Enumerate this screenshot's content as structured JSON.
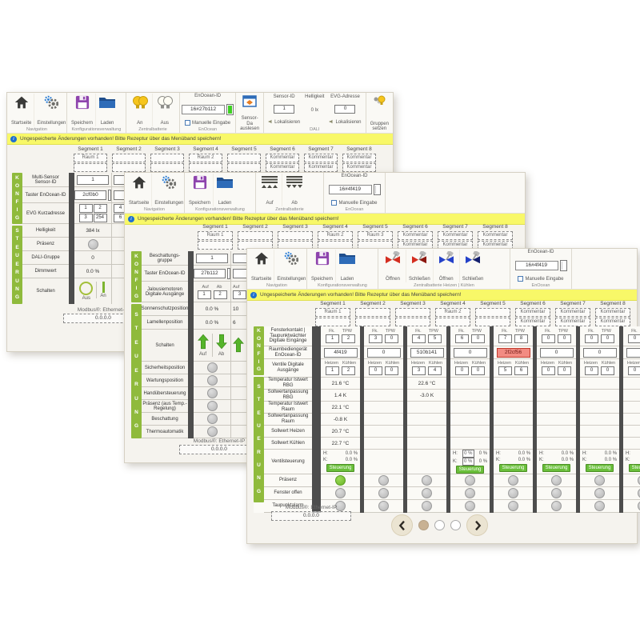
{
  "colors": {
    "accent_green": "#8fba3c",
    "status_green": "#6cb52a",
    "status_gray": "#c4c4c4",
    "warning_bg": "#f8f868",
    "alarm_red": "#f28b82",
    "badge_green": "#6abf3a",
    "battery_green": "#3ecf22"
  },
  "shared": {
    "warning_text": "Ungespeicherte Änderungen vorhanden! Bitte Rezeptur über das Menüband speichern!",
    "modbus_label": "Modbus®: Ethernet-IP",
    "modbus_value": "0.0.0.0",
    "konfig": "KONFIG",
    "steuerung": "STEUERUNG",
    "manual_label": "Manuelle Eingabe",
    "enocean_label": "EnOcean-ID"
  },
  "win1": {
    "toolbar": {
      "startseite": "Startseite",
      "einstellungen": "Einstellungen",
      "speichern": "Speichern",
      "laden": "Laden",
      "an": "An",
      "aus": "Aus",
      "enocean_id": "16#27b112",
      "sensor_read": "Sensor-Da auslesen",
      "caps": {
        "navigation": "Navigation",
        "konfig": "Konfigurationsverwaltung",
        "zentral": "Zentralbatterie",
        "enocean": "EnOcean",
        "dali": "DALI"
      },
      "dali": {
        "sensor_id_label": "Sensor-ID",
        "sensor_id": "1",
        "helligkeit_label": "Helligkeit",
        "helligkeit": "0 lx",
        "lokalisieren": "Lokalisieren",
        "evg_label": "EVG-Adresse",
        "evg": "0",
        "gruppen": "Gruppen setzen"
      }
    },
    "segments": [
      {
        "label": "Segment 1",
        "r1": "Raum 1",
        "r2": ""
      },
      {
        "label": "Segment 2",
        "r1": "",
        "r2": ""
      },
      {
        "label": "Segment 3",
        "r1": "",
        "r2": ""
      },
      {
        "label": "Segment 4",
        "r1": "Raum 2",
        "r2": ""
      },
      {
        "label": "Segment 5",
        "r1": "",
        "r2": ""
      },
      {
        "label": "Segment 6",
        "r1": "Kommentar",
        "r2": "Kommentar"
      },
      {
        "label": "Segment 7",
        "r1": "Kommentar",
        "r2": "Kommentar"
      },
      {
        "label": "Segment 8",
        "r1": "Kommentar",
        "r2": "Kommentar"
      }
    ],
    "panel": {
      "sensor_label": "Multi-Sensor Sensor-ID",
      "sensor_value": "1",
      "taster_label": "Taster EnOcean-ID",
      "taster_value": "2cf0b0",
      "evg_label": "EVG Kurzadresse",
      "evg": [
        "1",
        "2",
        "3",
        "254"
      ],
      "helligkeit_label": "Helligkeit",
      "helligkeit_value": "384 lx",
      "praesenz_label": "Präsenz",
      "dali_label": "DALI-Gruppe",
      "dali_value": "0",
      "dimm_label": "Dimmwert",
      "dimm_value": "0.0 %",
      "schalten_label": "Schalten",
      "aus": "Aus",
      "an": "An",
      "sliver": {
        "evg1": "4",
        "evg2": "6"
      }
    }
  },
  "win2": {
    "toolbar": {
      "startseite": "Startseite",
      "einstellungen": "Einstellungen",
      "speichern": "Speichern",
      "laden": "Laden",
      "auf": "Auf",
      "ab": "Ab",
      "enocean_id": "16#4f419",
      "caps": {
        "navigation": "Navigation",
        "konfig": "Konfigurationsverwaltung",
        "zentral": "Zentralbatterie",
        "enocean": "EnOcean"
      }
    },
    "segments": [
      {
        "label": "Segment 1",
        "r1": "Raum 1",
        "r2": ""
      },
      {
        "label": "Segment 2",
        "r1": "",
        "r2": ""
      },
      {
        "label": "Segment 3",
        "r1": "",
        "r2": ""
      },
      {
        "label": "Segment 4",
        "r1": "Raum 2",
        "r2": ""
      },
      {
        "label": "Segment 5",
        "r1": "Raum 3",
        "r2": ""
      },
      {
        "label": "Segment 6",
        "r1": "Kommentar",
        "r2": "Kommentar"
      },
      {
        "label": "Segment 7",
        "r1": "Kommentar",
        "r2": "Kommentar"
      },
      {
        "label": "Segment 8",
        "r1": "Kommentar",
        "r2": "Kommentar"
      }
    ],
    "panel": {
      "gruppe_label": "Beschattungs- gruppe",
      "gruppe_value": "1",
      "taster_label": "Taster EnOcean-ID",
      "taster_value": "27b112",
      "jal_label": "Jalousiemotoren Digitale Ausgänge",
      "auf": "Auf",
      "ab": "Ab",
      "jal1": "1",
      "jal2": "2",
      "sonnen_label": "Sonnenschutzposition",
      "sonnen_value": "0.0 %",
      "lam_label": "Lamellenposition",
      "lam_value": "0.0 %",
      "schalten_label": "Schalten",
      "circles": [
        "Sicherheitsposition",
        "Wartungsposition",
        "Handübersteuerung",
        "Präsenz (aus Temp.-Regelung)",
        "Beschattung",
        "Thermoautomatik"
      ],
      "sliver": {
        "jal": "3",
        "sonnen": "10",
        "lam": "6"
      }
    }
  },
  "win3": {
    "toolbar": {
      "startseite": "Startseite",
      "einstellungen": "Einstellungen",
      "speichern": "Speichern",
      "laden": "Laden",
      "oeffnen": "Öffnen",
      "schliessen": "Schließen",
      "enocean_id": "16#4f419",
      "caps": {
        "navigation": "Navigation",
        "konfig": "Konfigurationsverwaltung",
        "zentral": "Zentralbatterie Heizen | Kühlen",
        "enocean": "EnOcean"
      }
    },
    "segments": [
      {
        "label": "Segment 1",
        "r1": "Raum 1",
        "r2": ""
      },
      {
        "label": "Segment 2",
        "r1": "",
        "r2": ""
      },
      {
        "label": "Segment 3",
        "r1": "",
        "r2": ""
      },
      {
        "label": "Segment 4",
        "r1": "Raum 2",
        "r2": ""
      },
      {
        "label": "Segment 5",
        "r1": "",
        "r2": ""
      },
      {
        "label": "Segment 6",
        "r1": "Kommentar",
        "r2": "Kommentar"
      },
      {
        "label": "Segment 7",
        "r1": "Kommentar",
        "r2": "Kommentar"
      },
      {
        "label": "Segment 8",
        "r1": "Kommentar",
        "r2": "Kommentar"
      }
    ],
    "table": {
      "headers": {
        "fk": "Fk.",
        "tpw": "TPW",
        "heizen": "Heizen",
        "kuehlen": "Kühlen",
        "h": "H:",
        "k": "K:",
        "badge": "Steuerung"
      },
      "label_a": "Fensterkontakt | Taupunktwächter Digitale Eingänge",
      "label_b": "Raumbediengerät EnOcean-ID",
      "label_c": "Ventile Digitale Ausgänge",
      "labels_v": [
        "Temperatur Istwert RBG",
        "Sollwertanpassung RBG",
        "Temperatur Istwert Raum",
        "Sollwertanpassung Raum",
        "Sollwert Heizen",
        "Sollwert Kühlen"
      ],
      "label_j": "Ventilsteuerung",
      "labels_s": [
        "Präsenz",
        "Fenster offen",
        "Taupunktalarm"
      ],
      "columns": [
        {
          "fk": "1",
          "tpw": "2",
          "id": "4f419",
          "id_alarm": false,
          "heizen": "1",
          "kuehlen": "2",
          "t_rbg": "21.6 °C",
          "sw_rbg": "1.4 K",
          "t_raum": "22.1 °C",
          "sw_raum": "-0.8 K",
          "sw_heizen": "20.7 °C",
          "sw_kuehlen": "22.7 °C",
          "h": "0.0 %",
          "k": "0.0 %",
          "hk_boxed": false,
          "h_suffix": "",
          "k_suffix": "",
          "badge": true,
          "presence_on": true
        },
        {
          "fk": "3",
          "tpw": "0",
          "id": "0",
          "id_alarm": false,
          "heizen": "0",
          "kuehlen": "0",
          "t_rbg": "",
          "sw_rbg": "",
          "t_raum": "",
          "sw_raum": "",
          "sw_heizen": "",
          "sw_kuehlen": "",
          "h": "",
          "k": "",
          "hk_boxed": false,
          "h_suffix": "",
          "k_suffix": "",
          "badge": false,
          "presence_on": false
        },
        {
          "fk": "4",
          "tpw": "5",
          "id": "510b141",
          "id_alarm": false,
          "heizen": "3",
          "kuehlen": "4",
          "t_rbg": "22.6 °C",
          "sw_rbg": "-3.0 K",
          "t_raum": "",
          "sw_raum": "",
          "sw_heizen": "",
          "sw_kuehlen": "",
          "h": "",
          "k": "",
          "hk_boxed": false,
          "h_suffix": "",
          "k_suffix": "",
          "badge": false,
          "presence_on": false
        },
        {
          "fk": "6",
          "tpw": "0",
          "id": "0",
          "id_alarm": false,
          "heizen": "0",
          "kuehlen": "0",
          "t_rbg": "",
          "sw_rbg": "",
          "t_raum": "",
          "sw_raum": "",
          "sw_heizen": "",
          "sw_kuehlen": "",
          "h": "0 %",
          "k": "0 %",
          "hk_boxed": true,
          "h_suffix": "0 %",
          "k_suffix": "0 %",
          "badge": true,
          "presence_on": false
        },
        {
          "fk": "7",
          "tpw": "8",
          "id": "2f2cf56",
          "id_alarm": true,
          "heizen": "5",
          "kuehlen": "6",
          "t_rbg": "",
          "sw_rbg": "",
          "t_raum": "",
          "sw_raum": "",
          "sw_heizen": "",
          "sw_kuehlen": "",
          "h": "0.0 %",
          "k": "0.0 %",
          "hk_boxed": false,
          "h_suffix": "",
          "k_suffix": "",
          "badge": true,
          "presence_on": false
        },
        {
          "fk": "0",
          "tpw": "0",
          "id": "0",
          "id_alarm": false,
          "heizen": "0",
          "kuehlen": "0",
          "t_rbg": "",
          "sw_rbg": "",
          "t_raum": "",
          "sw_raum": "",
          "sw_heizen": "",
          "sw_kuehlen": "",
          "h": "0.0 %",
          "k": "0.0 %",
          "hk_boxed": false,
          "h_suffix": "",
          "k_suffix": "",
          "badge": true,
          "presence_on": false
        },
        {
          "fk": "0",
          "tpw": "0",
          "id": "0",
          "id_alarm": false,
          "heizen": "0",
          "kuehlen": "0",
          "t_rbg": "",
          "sw_rbg": "",
          "t_raum": "",
          "sw_raum": "",
          "sw_heizen": "",
          "sw_kuehlen": "",
          "h": "0.0 %",
          "k": "0.0 %",
          "hk_boxed": false,
          "h_suffix": "",
          "k_suffix": "",
          "badge": true,
          "presence_on": false
        },
        {
          "fk": "0",
          "tpw": "0",
          "id": "0",
          "id_alarm": false,
          "heizen": "0",
          "kuehlen": "0",
          "t_rbg": "",
          "sw_rbg": "",
          "t_raum": "",
          "sw_raum": "",
          "sw_heizen": "",
          "sw_kuehlen": "",
          "h": "0.0 %",
          "k": "0.0 %",
          "hk_boxed": false,
          "h_suffix": "",
          "k_suffix": "",
          "badge": true,
          "presence_on": false
        }
      ]
    }
  }
}
